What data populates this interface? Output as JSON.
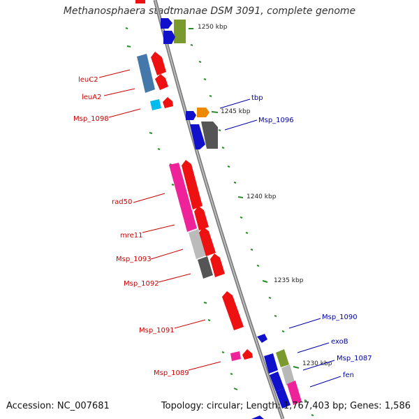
{
  "title": "Methanosphaera stadtmanae DSM 3091, complete genome",
  "footer": {
    "accession": "Accession: NC_007681",
    "summary": "Topology: circular; Length: 1,767,403 bp; Genes: 1,586"
  },
  "colors": {
    "reverse_label": "#cc0000",
    "forward_label": "#0000aa",
    "backbone": "#888888",
    "tick": "#2a8a2a"
  },
  "kbp_ticks": [
    "1250 kbp",
    "1245 kbp",
    "1240 kbp",
    "1235 kbp",
    "1230 kbp"
  ],
  "labels_left": [
    "leuC2",
    "leuA2",
    "Msp_1098",
    "rad50",
    "mre11",
    "Msp_1093",
    "Msp_1092",
    "Msp_1091",
    "Msp_1089"
  ],
  "labels_right": [
    "tbp",
    "Msp_1096",
    "Msp_1090",
    "exoB",
    "Msp_1087",
    "fen"
  ]
}
